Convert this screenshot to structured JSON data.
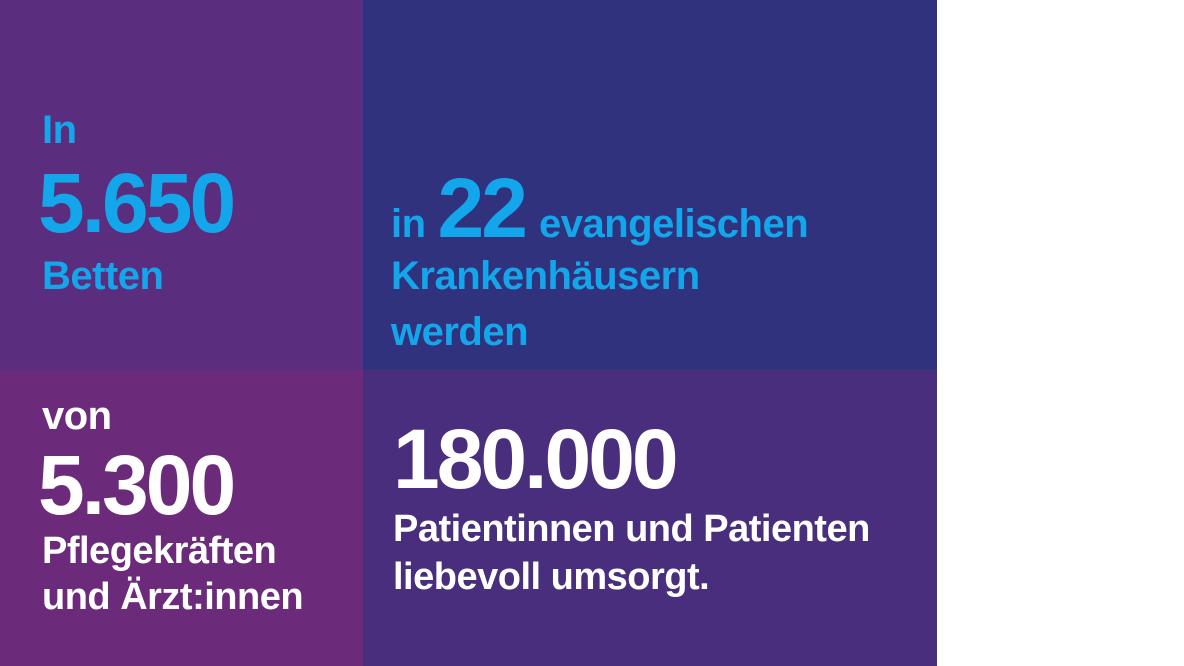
{
  "colors": {
    "top_left_bg": "#5a2d7f",
    "top_right_bg": "#30327e",
    "bottom_left_bg": "#6c2a7b",
    "bottom_right_bg": "#482e7c",
    "accent_blue": "#14a6ea",
    "text_white": "#ffffff"
  },
  "beds": {
    "prefix": "In",
    "number": "5.650",
    "label": "Betten"
  },
  "hospitals": {
    "prefix": "in",
    "number": "22",
    "word": "evangelischen",
    "line2": "Krankenhäusern",
    "line3": "werden"
  },
  "staff": {
    "prefix": "von",
    "number": "5.300",
    "line1": "Pflegekräften",
    "line2": "und Ärzt:innen"
  },
  "patients": {
    "number": "180.000",
    "line1": "Patientinnen und Patienten",
    "line2": "liebevoll umsorgt."
  }
}
